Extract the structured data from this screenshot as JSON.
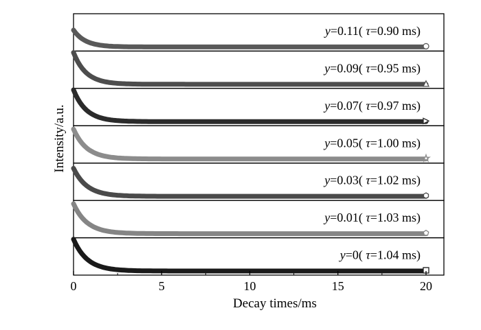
{
  "chart_data": {
    "type": "line",
    "title": "",
    "xlabel": "Decay times/ms",
    "ylabel": "Intensity/a.u.",
    "xlim": [
      0,
      20
    ],
    "xticks": [
      0,
      5,
      10,
      15,
      20
    ],
    "stacked_panels": true,
    "grid": false,
    "panels": [
      {
        "label_var": "y",
        "label_value": "=0.11",
        "label_tau_eq": "=0.90 ms",
        "tau_ms": 0.9,
        "color": "#595959",
        "marker": "circle",
        "y_start": 0.45
      },
      {
        "label_var": "y",
        "label_value": "=0.09",
        "label_tau_eq": "=0.95 ms",
        "tau_ms": 0.95,
        "color": "#4d4d4d",
        "marker": "triangle",
        "y_start": 0.85
      },
      {
        "label_var": "y",
        "label_value": "=0.07",
        "label_tau_eq": "=0.97 ms",
        "tau_ms": 0.97,
        "color": "#2b2b2b",
        "marker": "triangle-right",
        "y_start": 0.85
      },
      {
        "label_var": "y",
        "label_value": "=0.05",
        "label_tau_eq": "=1.00 ms",
        "tau_ms": 1.0,
        "color": "#8c8c8c",
        "marker": "star",
        "y_start": 0.8
      },
      {
        "label_var": "y",
        "label_value": "=0.03",
        "label_tau_eq": "=1.02 ms",
        "tau_ms": 1.02,
        "color": "#4a4a4a",
        "marker": "hexagon",
        "y_start": 0.75
      },
      {
        "label_var": "y",
        "label_value": "=0.01",
        "label_tau_eq": "=1.03 ms",
        "tau_ms": 1.03,
        "color": "#858585",
        "marker": "pentagon",
        "y_start": 0.8
      },
      {
        "label_var": "y",
        "label_value": "=0",
        "label_tau_eq": "=1.04 ms",
        "tau_ms": 1.04,
        "color": "#1a1a1a",
        "marker": "square",
        "y_start": 0.85
      }
    ]
  },
  "symbols": {
    "tau": "τ",
    "open_paren": "(",
    "close_paren": ")"
  }
}
